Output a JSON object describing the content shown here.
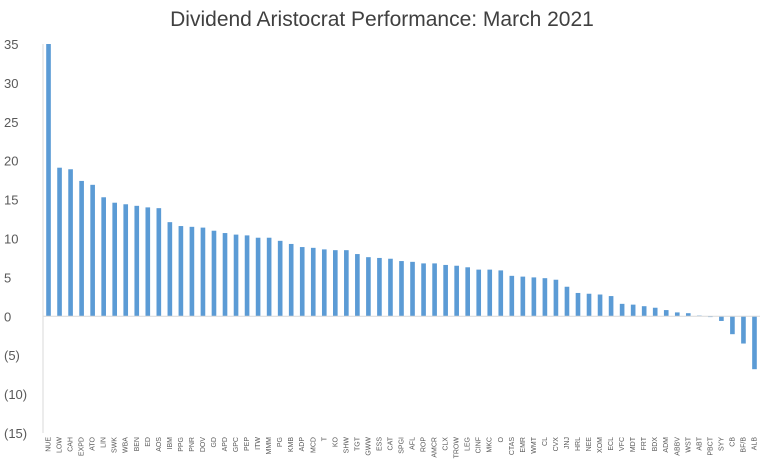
{
  "chart_data": {
    "type": "bar",
    "title": "Dividend Aristocrat Performance: March 2021",
    "xlabel": "",
    "ylabel": "",
    "ylim": [
      -15,
      35
    ],
    "yticks": [
      35,
      30,
      25,
      20,
      15,
      10,
      5,
      0,
      -5,
      -10,
      -15
    ],
    "ytick_labels": [
      "35",
      "30",
      "25",
      "20",
      "15",
      "10",
      "5",
      "0",
      "(5)",
      "(10)",
      "(15)"
    ],
    "grid": false,
    "legend": "none",
    "bar_color": "#5B9BD5",
    "categories": [
      "NUE",
      "LOW",
      "CAH",
      "EXPD",
      "ATO",
      "LIN",
      "SWK",
      "WBA",
      "BEN",
      "ED",
      "AOS",
      "IBM",
      "PPG",
      "PNR",
      "DOV",
      "GD",
      "APD",
      "GPC",
      "PEP",
      "ITW",
      "MMM",
      "PG",
      "KMB",
      "ADP",
      "MCD",
      "T",
      "KO",
      "SHW",
      "TGT",
      "GWW",
      "ESS",
      "CAT",
      "SPGI",
      "AFL",
      "ROP",
      "AMCR",
      "CLX",
      "TROW",
      "LEG",
      "CINF",
      "MKC",
      "O",
      "CTAS",
      "EMR",
      "WMT",
      "CL",
      "CVX",
      "JNJ",
      "HRL",
      "NEE",
      "XOM",
      "ECL",
      "VFC",
      "MDT",
      "FRT",
      "BDX",
      "ADM",
      "ABBV",
      "WST",
      "ABT",
      "PBCT",
      "SYY",
      "CB",
      "BF/B",
      "ALB"
    ],
    "values": [
      35.0,
      19.1,
      18.9,
      17.4,
      16.9,
      15.3,
      14.6,
      14.4,
      14.2,
      14.0,
      13.9,
      12.1,
      11.6,
      11.5,
      11.4,
      11.0,
      10.7,
      10.5,
      10.4,
      10.1,
      10.1,
      9.7,
      9.3,
      8.9,
      8.8,
      8.6,
      8.5,
      8.5,
      8.0,
      7.6,
      7.5,
      7.4,
      7.1,
      7.0,
      6.8,
      6.8,
      6.6,
      6.5,
      6.3,
      6.0,
      6.0,
      5.9,
      5.2,
      5.1,
      5.0,
      4.9,
      4.7,
      3.8,
      3.0,
      2.9,
      2.8,
      2.6,
      1.6,
      1.5,
      1.3,
      1.1,
      0.8,
      0.5,
      0.4,
      0.1,
      -0.1,
      -0.6,
      -2.3,
      -3.5,
      -6.8
    ]
  }
}
